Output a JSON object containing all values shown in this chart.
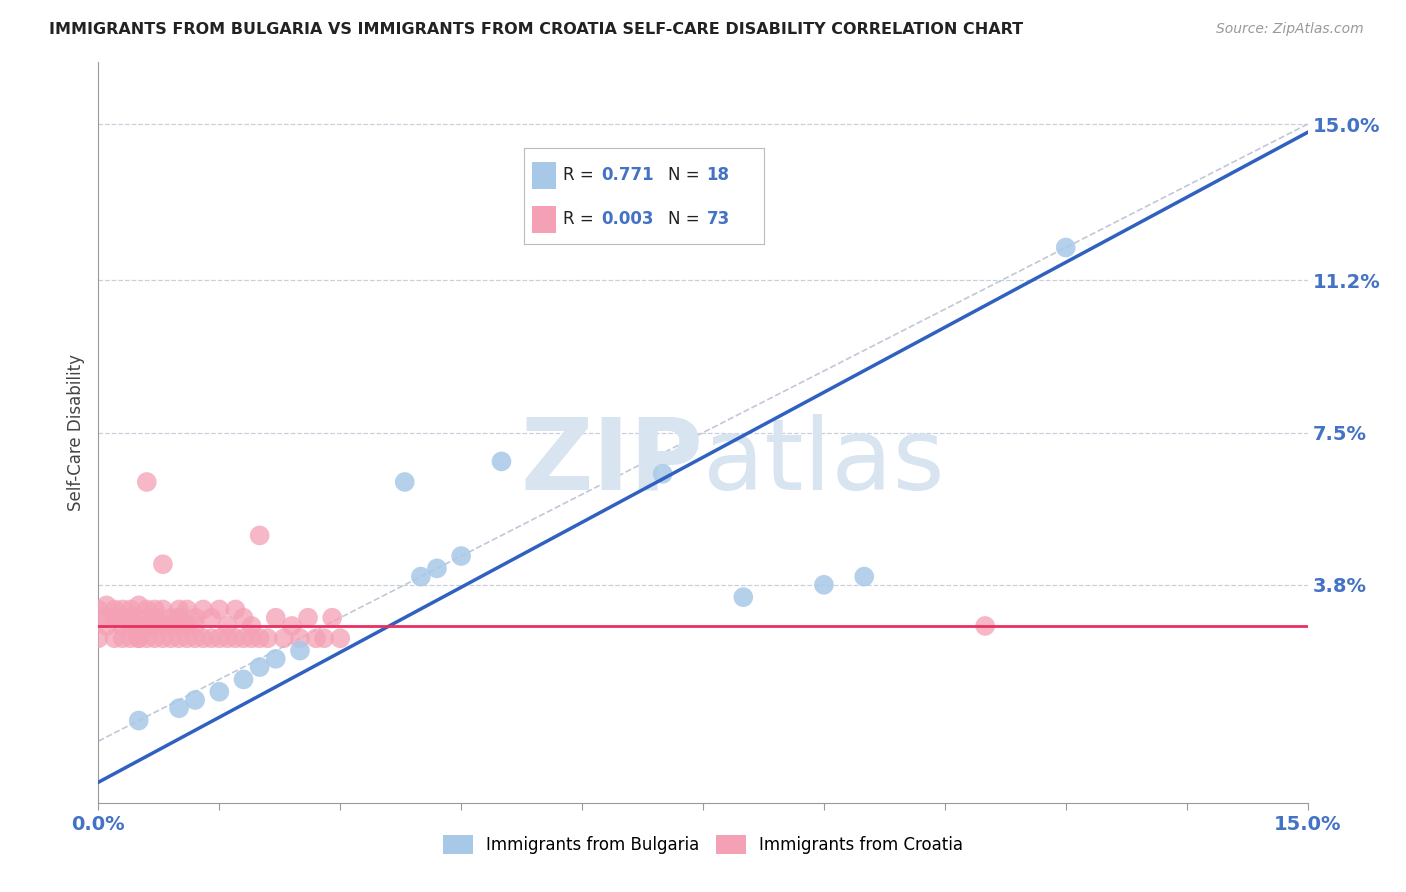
{
  "title": "IMMIGRANTS FROM BULGARIA VS IMMIGRANTS FROM CROATIA SELF-CARE DISABILITY CORRELATION CHART",
  "source": "Source: ZipAtlas.com",
  "ylabel": "Self-Care Disability",
  "xmin": 0.0,
  "xmax": 0.15,
  "ymin": -0.015,
  "ymax": 0.165,
  "yticks": [
    0.038,
    0.075,
    0.112,
    0.15
  ],
  "ytick_labels": [
    "3.8%",
    "7.5%",
    "11.2%",
    "15.0%"
  ],
  "bulgaria_R": 0.771,
  "bulgaria_N": 18,
  "croatia_R": 0.003,
  "croatia_N": 73,
  "bulgaria_color": "#a8c8e8",
  "croatia_color": "#f4a0b5",
  "bulgaria_line_color": "#3060c0",
  "croatia_line_color": "#e83060",
  "ref_line_color": "#c0c8d8",
  "watermark_color": "#d8e4f0",
  "background_color": "#ffffff",
  "grid_color": "#c8d0dc",
  "label_color": "#4472c4",
  "bulgaria_scatter_x": [
    0.005,
    0.01,
    0.012,
    0.015,
    0.018,
    0.02,
    0.022,
    0.025,
    0.04,
    0.042,
    0.045,
    0.07,
    0.08,
    0.09,
    0.095,
    0.038,
    0.05,
    0.12
  ],
  "bulgaria_scatter_y": [
    0.005,
    0.008,
    0.01,
    0.012,
    0.015,
    0.018,
    0.02,
    0.022,
    0.04,
    0.042,
    0.045,
    0.065,
    0.035,
    0.038,
    0.04,
    0.063,
    0.068,
    0.12
  ],
  "croatia_scatter_x": [
    0.0,
    0.0,
    0.001,
    0.001,
    0.001,
    0.002,
    0.002,
    0.002,
    0.003,
    0.003,
    0.003,
    0.003,
    0.004,
    0.004,
    0.004,
    0.004,
    0.005,
    0.005,
    0.005,
    0.005,
    0.005,
    0.006,
    0.006,
    0.006,
    0.007,
    0.007,
    0.007,
    0.007,
    0.008,
    0.008,
    0.008,
    0.009,
    0.009,
    0.009,
    0.01,
    0.01,
    0.01,
    0.01,
    0.011,
    0.011,
    0.011,
    0.012,
    0.012,
    0.012,
    0.013,
    0.013,
    0.014,
    0.014,
    0.015,
    0.015,
    0.016,
    0.016,
    0.017,
    0.017,
    0.018,
    0.018,
    0.019,
    0.019,
    0.02,
    0.021,
    0.022,
    0.023,
    0.024,
    0.025,
    0.026,
    0.027,
    0.028,
    0.029,
    0.03,
    0.11,
    0.02,
    0.006,
    0.008
  ],
  "croatia_scatter_y": [
    0.025,
    0.032,
    0.03,
    0.028,
    0.033,
    0.03,
    0.025,
    0.032,
    0.028,
    0.032,
    0.025,
    0.03,
    0.028,
    0.032,
    0.025,
    0.03,
    0.025,
    0.028,
    0.033,
    0.03,
    0.025,
    0.028,
    0.032,
    0.025,
    0.028,
    0.032,
    0.025,
    0.03,
    0.025,
    0.028,
    0.032,
    0.025,
    0.03,
    0.028,
    0.025,
    0.028,
    0.032,
    0.03,
    0.025,
    0.028,
    0.032,
    0.025,
    0.03,
    0.028,
    0.025,
    0.032,
    0.025,
    0.03,
    0.025,
    0.032,
    0.025,
    0.028,
    0.025,
    0.032,
    0.025,
    0.03,
    0.025,
    0.028,
    0.025,
    0.025,
    0.03,
    0.025,
    0.028,
    0.025,
    0.03,
    0.025,
    0.025,
    0.03,
    0.025,
    0.028,
    0.05,
    0.063,
    0.043
  ]
}
